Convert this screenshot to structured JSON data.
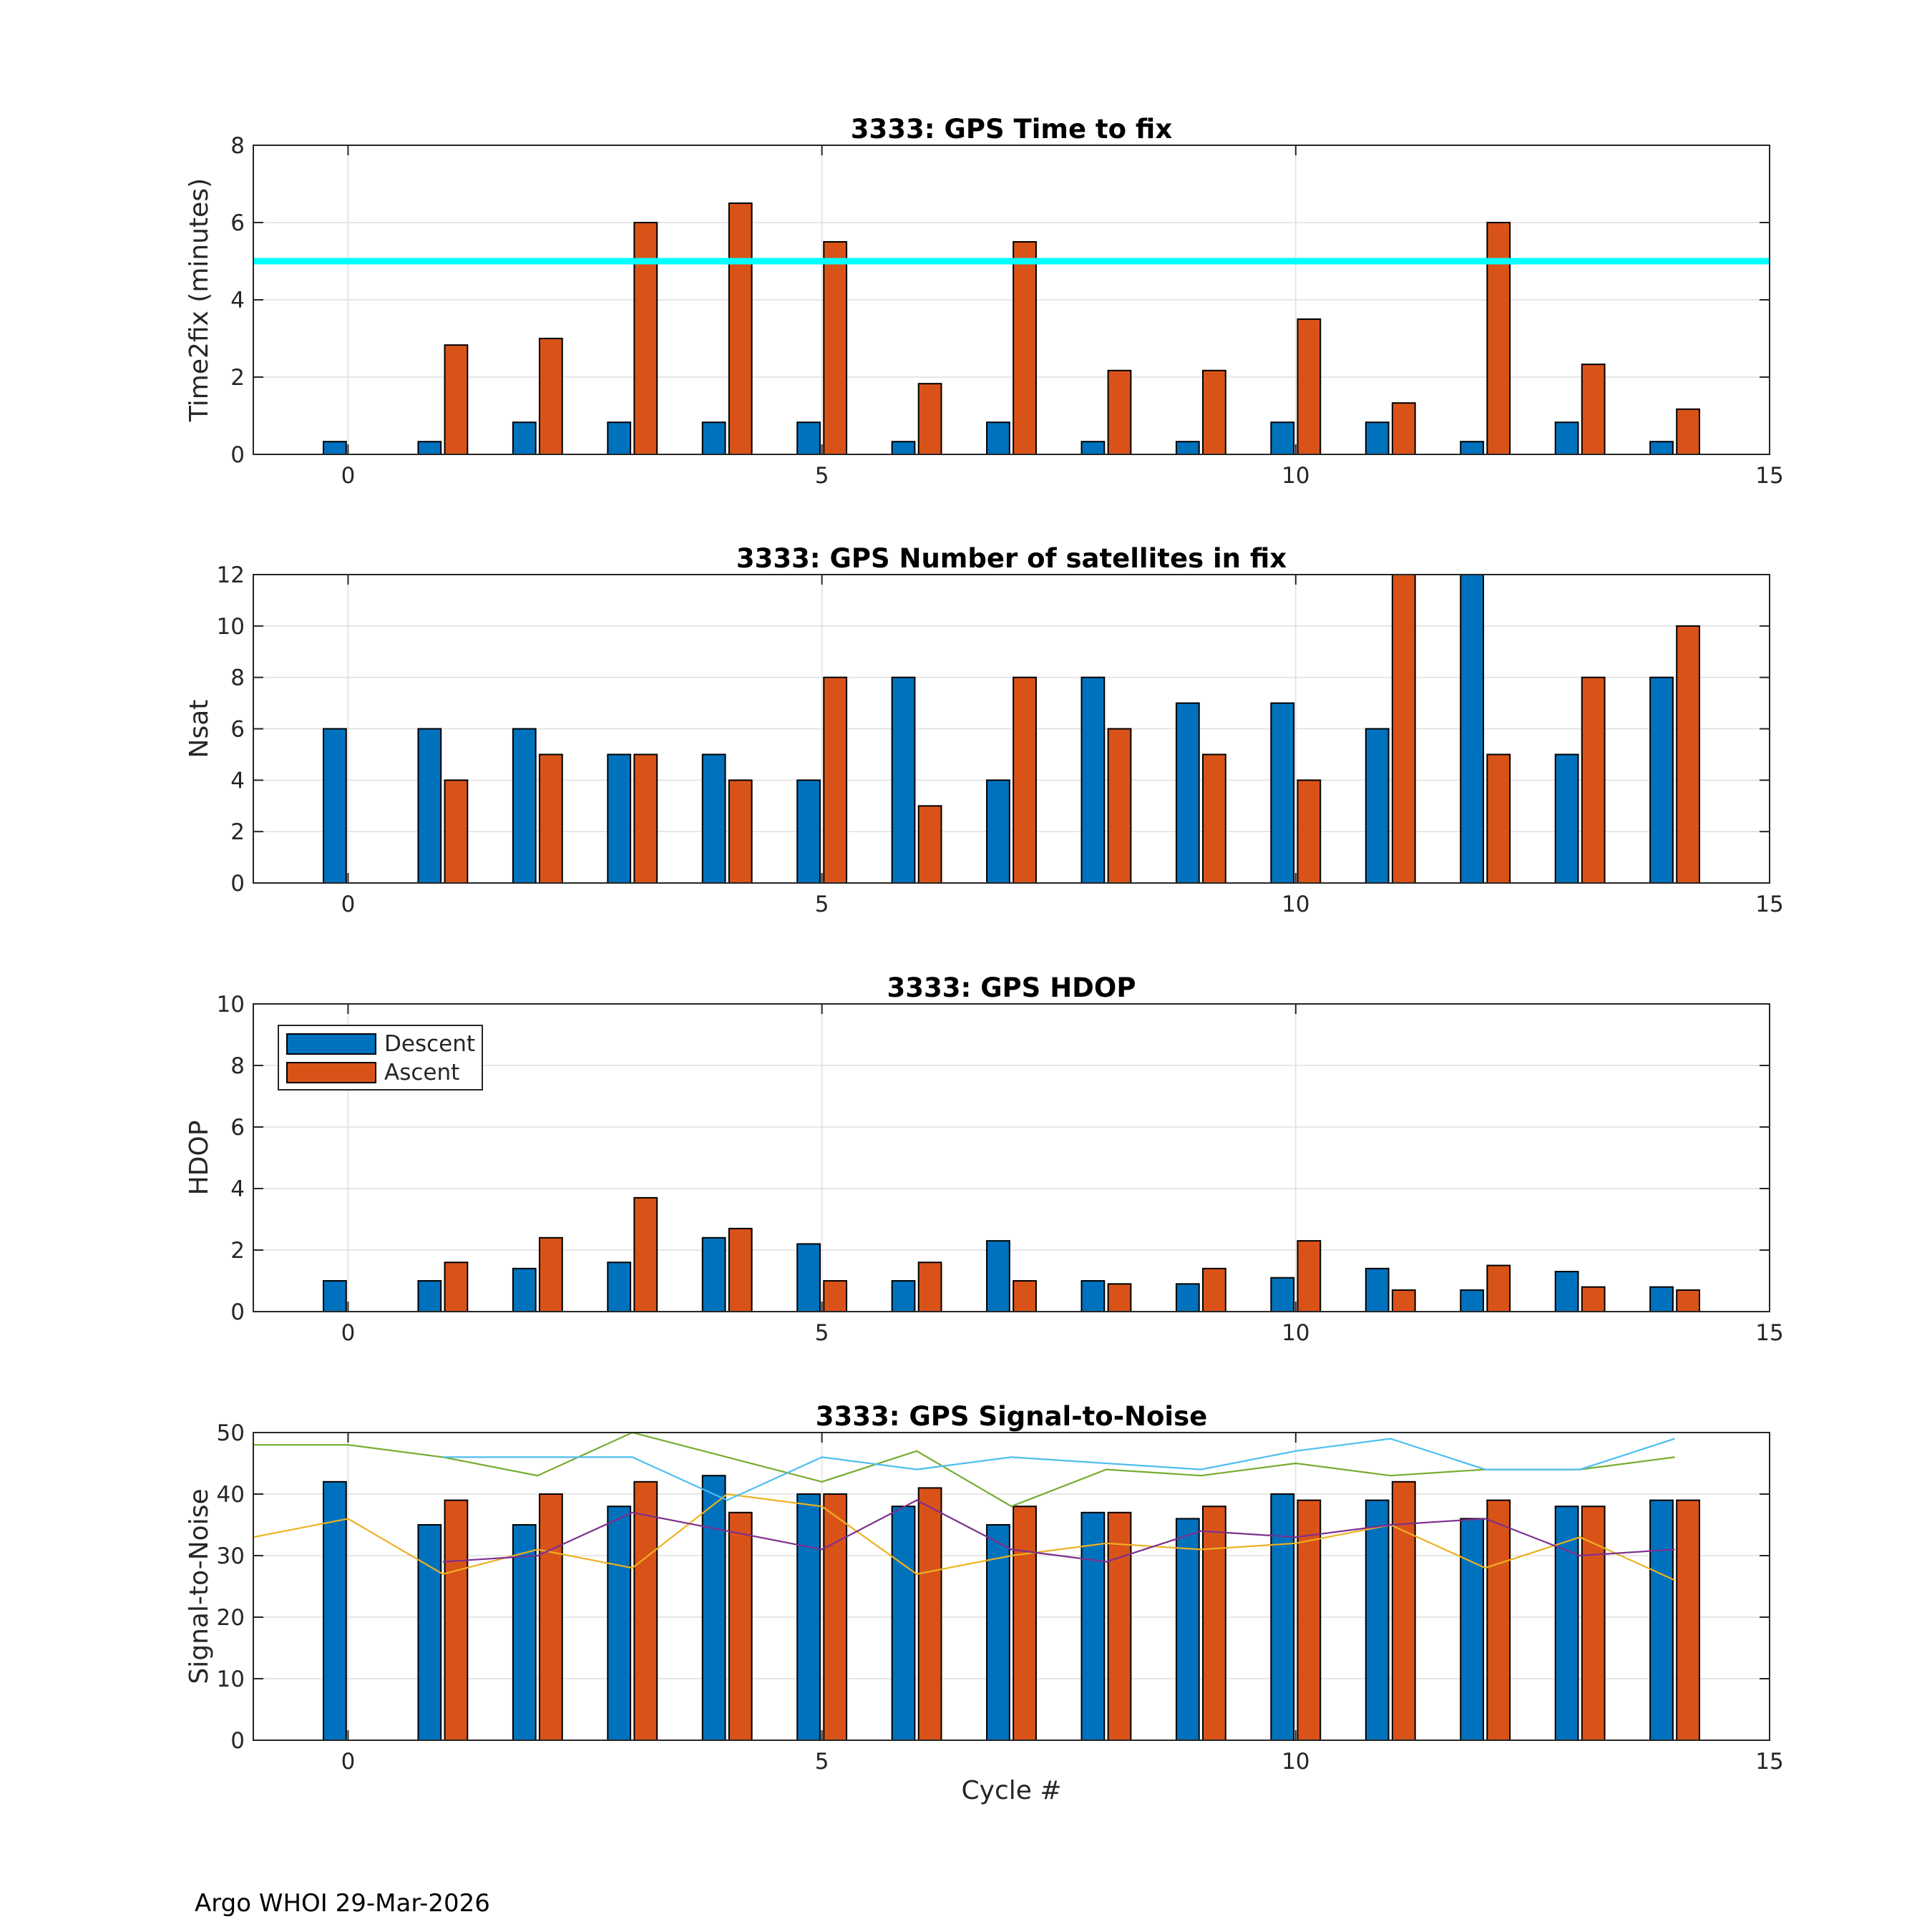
{
  "footer": "Argo WHOI 29-Mar-2026",
  "colors": {
    "descent": "#0072bd",
    "ascent": "#d95319",
    "threshold": "#00ffff",
    "snr_lines": [
      "#edb120",
      "#7e2f8e",
      "#77ac30",
      "#4dbeee"
    ]
  },
  "chart_data": [
    {
      "type": "bar",
      "title": "3333: GPS Time to fix",
      "xlabel": "",
      "ylabel": "Time2fix (minutes)",
      "xlim": [
        -1,
        15
      ],
      "ylim": [
        0,
        8
      ],
      "xticks": [
        0,
        5,
        10,
        15
      ],
      "yticks": [
        0,
        2,
        4,
        6,
        8
      ],
      "grid": true,
      "categories": [
        0,
        1,
        2,
        3,
        4,
        5,
        6,
        7,
        8,
        9,
        10,
        11,
        12,
        13,
        14
      ],
      "series": [
        {
          "name": "Descent",
          "values": [
            0.33,
            0.33,
            0.83,
            0.83,
            0.83,
            0.83,
            0.33,
            0.83,
            0.33,
            0.33,
            0.83,
            0.83,
            0.33,
            0.83,
            0.33
          ]
        },
        {
          "name": "Ascent",
          "values": [
            0,
            2.83,
            3.0,
            6.0,
            6.5,
            5.5,
            1.83,
            5.5,
            2.17,
            2.17,
            3.5,
            1.33,
            6.0,
            2.33,
            1.17
          ]
        }
      ],
      "reference_line": {
        "y": 5
      }
    },
    {
      "type": "bar",
      "title": "3333: GPS Number of satellites in fix",
      "xlabel": "",
      "ylabel": "Nsat",
      "xlim": [
        -1,
        15
      ],
      "ylim": [
        0,
        12
      ],
      "xticks": [
        0,
        5,
        10,
        15
      ],
      "yticks": [
        0,
        2,
        4,
        6,
        8,
        10,
        12
      ],
      "grid": true,
      "categories": [
        0,
        1,
        2,
        3,
        4,
        5,
        6,
        7,
        8,
        9,
        10,
        11,
        12,
        13,
        14
      ],
      "series": [
        {
          "name": "Descent",
          "values": [
            6,
            6,
            6,
            5,
            5,
            4,
            8,
            4,
            8,
            7,
            7,
            6,
            12,
            5,
            8
          ]
        },
        {
          "name": "Ascent",
          "values": [
            0,
            4,
            5,
            5,
            4,
            8,
            3,
            8,
            6,
            5,
            4,
            12,
            5,
            8,
            10
          ]
        }
      ]
    },
    {
      "type": "bar",
      "title": "3333: GPS HDOP",
      "xlabel": "",
      "ylabel": "HDOP",
      "xlim": [
        -1,
        15
      ],
      "ylim": [
        0,
        10
      ],
      "xticks": [
        0,
        5,
        10,
        15
      ],
      "yticks": [
        0,
        2,
        4,
        6,
        8,
        10
      ],
      "grid": true,
      "legend": {
        "position": "top-left",
        "entries": [
          "Descent",
          "Ascent"
        ]
      },
      "categories": [
        0,
        1,
        2,
        3,
        4,
        5,
        6,
        7,
        8,
        9,
        10,
        11,
        12,
        13,
        14
      ],
      "series": [
        {
          "name": "Descent",
          "values": [
            1.0,
            1.0,
            1.4,
            1.6,
            2.4,
            2.2,
            1.0,
            2.3,
            1.0,
            0.9,
            1.1,
            1.4,
            0.7,
            1.3,
            0.8
          ]
        },
        {
          "name": "Ascent",
          "values": [
            0,
            1.6,
            2.4,
            3.7,
            2.7,
            1.0,
            1.6,
            1.0,
            0.9,
            1.4,
            2.3,
            0.7,
            1.5,
            0.8,
            0.7
          ]
        }
      ]
    },
    {
      "type": "bar",
      "title": "3333: GPS Signal-to-Noise",
      "xlabel": "Cycle #",
      "ylabel": "Signal-to-Noise",
      "xlim": [
        -1,
        15
      ],
      "ylim": [
        0,
        50
      ],
      "xticks": [
        0,
        5,
        10,
        15
      ],
      "yticks": [
        0,
        10,
        20,
        30,
        40,
        50
      ],
      "grid": true,
      "categories": [
        0,
        1,
        2,
        3,
        4,
        5,
        6,
        7,
        8,
        9,
        10,
        11,
        12,
        13,
        14
      ],
      "series": [
        {
          "name": "Descent",
          "values": [
            42,
            35,
            35,
            38,
            43,
            40,
            38,
            35,
            37,
            36,
            40,
            39,
            36,
            38,
            39
          ]
        },
        {
          "name": "Ascent",
          "values": [
            0,
            39,
            40,
            42,
            37,
            40,
            41,
            38,
            37,
            38,
            39,
            42,
            39,
            38,
            39
          ]
        }
      ],
      "lines": [
        {
          "name": "snr-line-1",
          "x": [
            -1,
            0,
            1,
            2,
            3,
            4,
            5,
            6,
            7,
            8,
            9,
            10,
            11,
            12,
            13,
            14
          ],
          "y": [
            33,
            36,
            27,
            31,
            28,
            40,
            38,
            27,
            30,
            32,
            31,
            32,
            35,
            28,
            33,
            26
          ]
        },
        {
          "name": "snr-line-2",
          "x": [
            1,
            2,
            3,
            4,
            5,
            6,
            7,
            8,
            9,
            10,
            11,
            12,
            13,
            14
          ],
          "y": [
            29,
            30,
            37,
            34,
            31,
            39,
            31,
            29,
            34,
            33,
            35,
            36,
            30,
            31
          ]
        },
        {
          "name": "snr-line-3",
          "x": [
            -1,
            0,
            1,
            2,
            3,
            4,
            5,
            6,
            7,
            8,
            9,
            10,
            11,
            12,
            13,
            14
          ],
          "y": [
            48,
            48,
            46,
            43,
            50,
            46,
            42,
            47,
            38,
            44,
            43,
            45,
            43,
            44,
            44,
            46
          ]
        },
        {
          "name": "snr-line-4",
          "x": [
            1,
            2,
            3,
            4,
            5,
            6,
            7,
            8,
            9,
            10,
            11,
            12,
            13,
            14
          ],
          "y": [
            46,
            46,
            46,
            39,
            46,
            44,
            46,
            45,
            44,
            47,
            49,
            44,
            44,
            49
          ]
        }
      ]
    }
  ]
}
